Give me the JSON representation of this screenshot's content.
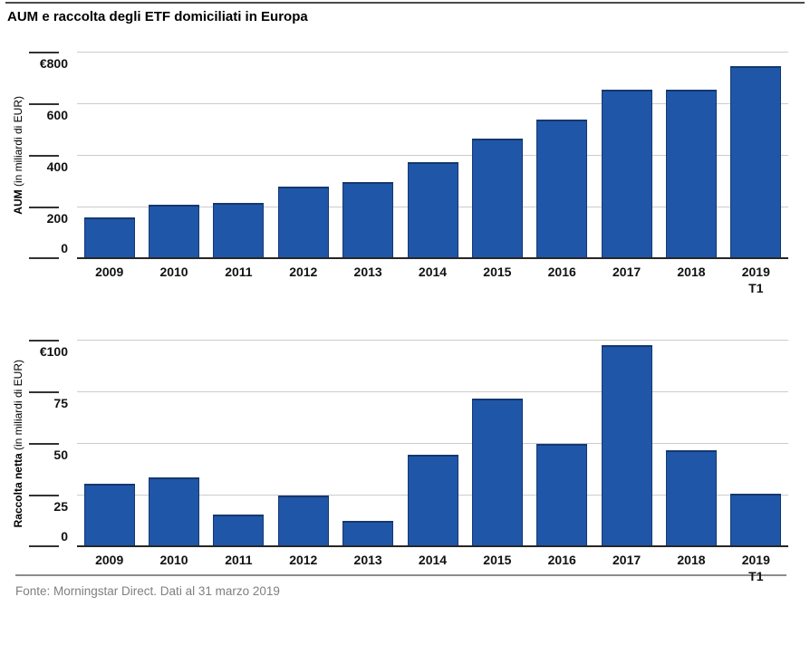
{
  "page": {
    "title": "AUM e raccolta degli ETF domiciliati in Europa",
    "footer": "Fonte: Morningstar Direct. Dati al 31 marzo 2019"
  },
  "colors": {
    "bar_fill": "#2056A8",
    "bar_border": "#14386E",
    "gridline": "#CCCCCC",
    "axis_line": "#262626",
    "footer_text": "#7F7F7F",
    "footer_rule": "#8C8C8C",
    "top_rule": "#4A4A4A"
  },
  "chart_data": [
    {
      "type": "bar",
      "name": "aum",
      "ylabel_bold": "AUM",
      "ylabel_rest": " (in miliardi di EUR)",
      "categories": [
        "2009",
        "2010",
        "2011",
        "2012",
        "2013",
        "2014",
        "2015",
        "2016",
        "2017",
        "2018",
        "2019"
      ],
      "category_subs": [
        "",
        "",
        "",
        "",
        "",
        "",
        "",
        "",
        "",
        "",
        "T1"
      ],
      "values": [
        155,
        205,
        210,
        273,
        292,
        368,
        460,
        533,
        650,
        650,
        740
      ],
      "ylim": [
        0,
        800
      ],
      "yticks": [
        {
          "value": 800,
          "label": "€800"
        },
        {
          "value": 600,
          "label": "600"
        },
        {
          "value": 400,
          "label": "400"
        },
        {
          "value": 200,
          "label": "200"
        },
        {
          "value": 0,
          "label": "0"
        }
      ],
      "grid": true,
      "legend": null
    },
    {
      "type": "bar",
      "name": "raccolta-netta",
      "ylabel_bold": "Raccolta netta",
      "ylabel_rest": " (in miliardi di EUR)",
      "categories": [
        "2009",
        "2010",
        "2011",
        "2012",
        "2013",
        "2014",
        "2015",
        "2016",
        "2017",
        "2018",
        "2019"
      ],
      "category_subs": [
        "",
        "",
        "",
        "",
        "",
        "",
        "",
        "",
        "",
        "",
        "T1"
      ],
      "values": [
        30,
        33,
        15,
        24,
        12,
        44,
        71,
        49,
        97,
        46,
        25
      ],
      "ylim": [
        0,
        100
      ],
      "yticks": [
        {
          "value": 100,
          "label": "€100"
        },
        {
          "value": 75,
          "label": "75"
        },
        {
          "value": 50,
          "label": "50"
        },
        {
          "value": 25,
          "label": "25"
        },
        {
          "value": 0,
          "label": "0"
        }
      ],
      "grid": true,
      "legend": null
    }
  ]
}
